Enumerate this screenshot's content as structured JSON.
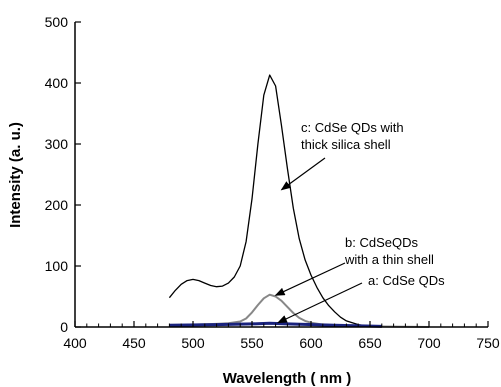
{
  "chart_data": {
    "type": "line",
    "xlabel": "Wavelength ( nm )",
    "ylabel": "Intensity (a. u.)",
    "xlim": [
      400,
      750
    ],
    "ylim": [
      0,
      500
    ],
    "x_ticks": [
      "400",
      "450",
      "500",
      "550",
      "600",
      "650",
      "700",
      "750"
    ],
    "y_ticks": [
      "0",
      "100",
      "200",
      "300",
      "400",
      "500"
    ],
    "grid": false,
    "series": [
      {
        "key": "c",
        "color": "#000000",
        "x": [
          480,
          485,
          490,
          495,
          500,
          505,
          510,
          515,
          520,
          525,
          530,
          535,
          540,
          545,
          550,
          555,
          560,
          565,
          570,
          575,
          580,
          585,
          590,
          595,
          600,
          605,
          610,
          615,
          620,
          625,
          630,
          640,
          650,
          660
        ],
        "y": [
          48,
          60,
          70,
          76,
          78,
          76,
          72,
          68,
          66,
          67,
          72,
          82,
          100,
          140,
          210,
          300,
          380,
          413,
          395,
          330,
          260,
          195,
          145,
          110,
          85,
          65,
          48,
          35,
          25,
          16,
          10,
          4,
          1,
          0
        ]
      },
      {
        "key": "b",
        "color": "#888888",
        "x": [
          480,
          500,
          520,
          530,
          540,
          545,
          550,
          555,
          560,
          565,
          570,
          575,
          580,
          585,
          590,
          595,
          600,
          610,
          620,
          630,
          650,
          700
        ],
        "y": [
          3,
          4,
          5,
          6,
          9,
          14,
          24,
          36,
          47,
          53,
          50,
          43,
          33,
          23,
          15,
          10,
          7,
          4,
          3,
          2,
          1,
          0
        ]
      },
      {
        "key": "a",
        "color": "#1a237e",
        "x": [
          480,
          520,
          550,
          565,
          580,
          620,
          660
        ],
        "y": [
          3,
          4,
          5,
          6,
          5,
          3,
          1
        ]
      }
    ],
    "annotations": [
      {
        "key": "c",
        "lines": [
          "c: CdSe QDs with",
          "thick silica shell"
        ],
        "target": [
          575,
          225
        ]
      },
      {
        "key": "b",
        "lines": [
          "b: CdSeQDs",
          "with a thin shell"
        ],
        "target": [
          570,
          52
        ]
      },
      {
        "key": "a",
        "lines": [
          "a: CdSe QDs"
        ],
        "target": [
          572,
          7
        ]
      }
    ]
  }
}
